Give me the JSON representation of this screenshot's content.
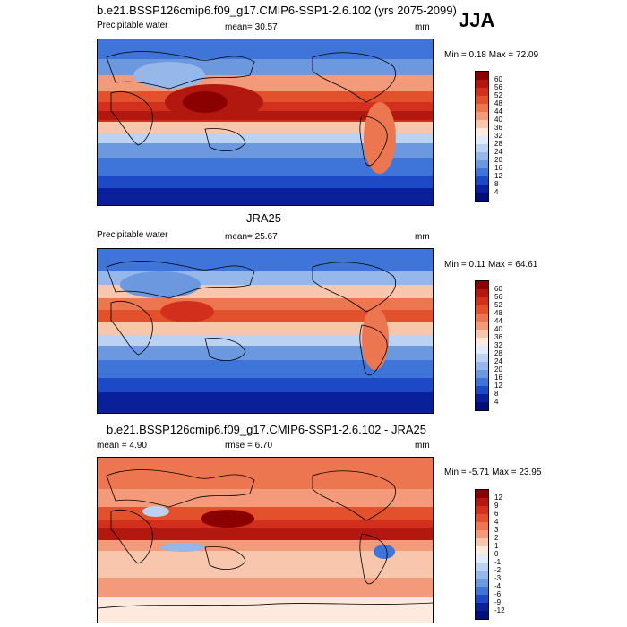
{
  "header": {
    "main_title": "b.e21.BSSP126cmip6.f09_g17.CMIP6-SSP1-2.6.102 (yrs 2075-2099)",
    "season": "JJA"
  },
  "panels": [
    {
      "id": "model",
      "title": "",
      "left_label": "Precipitable water",
      "center_label": "mean=  30.57",
      "right_label": "mm",
      "minmax": "Min =  0.18 Max =  72.09",
      "colorbar_labels": [
        "60",
        "56",
        "52",
        "48",
        "44",
        "40",
        "36",
        "32",
        "28",
        "24",
        "20",
        "16",
        "12",
        "8",
        "4"
      ],
      "colors": [
        "#8b0000",
        "#b2180f",
        "#d2301d",
        "#e2512c",
        "#ec7650",
        "#f39a7a",
        "#f8c5ad",
        "#fde9de",
        "#e0ecfb",
        "#bcd2f2",
        "#95b7ea",
        "#6c98e0",
        "#3f74d8",
        "#1d49c6",
        "#0a1f9a",
        "#000e7a"
      ]
    },
    {
      "id": "obs",
      "title": "JRA25",
      "left_label": "Precipitable water",
      "center_label": "mean=  25.67",
      "right_label": "mm",
      "minmax": "Min =  0.11 Max =  64.61",
      "colorbar_labels": [
        "60",
        "56",
        "52",
        "48",
        "44",
        "40",
        "36",
        "32",
        "28",
        "24",
        "20",
        "16",
        "12",
        "8",
        "4"
      ],
      "colors": [
        "#8b0000",
        "#b2180f",
        "#d2301d",
        "#e2512c",
        "#ec7650",
        "#f39a7a",
        "#f8c5ad",
        "#fde9de",
        "#e0ecfb",
        "#bcd2f2",
        "#95b7ea",
        "#6c98e0",
        "#3f74d8",
        "#1d49c6",
        "#0a1f9a",
        "#000e7a"
      ]
    },
    {
      "id": "diff",
      "title": "b.e21.BSSP126cmip6.f09_g17.CMIP6-SSP1-2.6.102 - JRA25",
      "left_label": "mean =   4.90",
      "center_label": "rmse =   6.70",
      "right_label": "mm",
      "minmax": "Min =  -5.71 Max =  23.95",
      "colorbar_labels": [
        "12",
        "9",
        "6",
        "4",
        "3",
        "2",
        "1",
        "0",
        "-1",
        "-2",
        "-3",
        "-4",
        "-6",
        "-9",
        "-12"
      ],
      "colors": [
        "#8b0000",
        "#b2180f",
        "#d2301d",
        "#e2512c",
        "#ec7650",
        "#f39a7a",
        "#f8c5ad",
        "#fde9de",
        "#e0ecfb",
        "#bcd2f2",
        "#95b7ea",
        "#6c98e0",
        "#3f74d8",
        "#1d49c6",
        "#0a1f9a",
        "#000e7a"
      ]
    }
  ]
}
